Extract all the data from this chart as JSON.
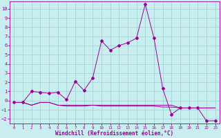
{
  "xlabel": "Windchill (Refroidissement éolien,°C)",
  "bg_color": "#c8eef0",
  "grid_color": "#9ecfcf",
  "line_color": "#990099",
  "xlim": [
    -0.5,
    23.5
  ],
  "ylim": [
    -2.5,
    10.8
  ],
  "yticks": [
    -2,
    -1,
    0,
    1,
    2,
    3,
    4,
    5,
    6,
    7,
    8,
    9,
    10
  ],
  "xticks": [
    0,
    1,
    2,
    3,
    4,
    5,
    6,
    7,
    8,
    9,
    10,
    11,
    12,
    13,
    14,
    15,
    16,
    17,
    18,
    19,
    20,
    21,
    22,
    23
  ],
  "series1": {
    "x": [
      0,
      1,
      2,
      3,
      4,
      5,
      6,
      7,
      8,
      9,
      10,
      11,
      12,
      13,
      14,
      15,
      16,
      17,
      18,
      19,
      20,
      21,
      22,
      23
    ],
    "y": [
      -0.2,
      -0.2,
      1.0,
      0.9,
      0.8,
      0.9,
      0.1,
      2.1,
      1.1,
      2.5,
      6.5,
      5.5,
      6.0,
      6.3,
      6.8,
      10.5,
      6.8,
      1.3,
      -1.5,
      -0.8,
      -0.8,
      -0.8,
      -2.2,
      -2.2
    ]
  },
  "series2": {
    "x": [
      0,
      1,
      2,
      3,
      4,
      5,
      6,
      7,
      8,
      9,
      10,
      11,
      12,
      13,
      14,
      15,
      16,
      17,
      18,
      19,
      20,
      21,
      22,
      23
    ],
    "y": [
      -0.2,
      -0.2,
      -0.5,
      -0.2,
      -0.2,
      -0.5,
      -0.5,
      -0.5,
      -0.5,
      -0.5,
      -0.5,
      -0.5,
      -0.5,
      -0.5,
      -0.5,
      -0.5,
      -0.5,
      -0.5,
      -0.5,
      -0.8,
      -0.8,
      -0.8,
      -0.8,
      -0.8
    ]
  },
  "series3": {
    "x": [
      0,
      1,
      2,
      3,
      4,
      5,
      6,
      7,
      8,
      9,
      10,
      11,
      12,
      13,
      14,
      15,
      16,
      17,
      18,
      19,
      20,
      21,
      22,
      23
    ],
    "y": [
      -0.2,
      -0.2,
      -0.5,
      -0.2,
      -0.2,
      -0.5,
      -0.6,
      -0.6,
      -0.6,
      -0.5,
      -0.6,
      -0.6,
      -0.6,
      -0.6,
      -0.6,
      -0.6,
      -0.6,
      -0.7,
      -0.7,
      -0.8,
      -0.8,
      -0.8,
      -0.8,
      -0.8
    ]
  },
  "xlabel_fontsize": 5.5,
  "tick_fontsize_x": 4.2,
  "tick_fontsize_y": 5.0,
  "linewidth": 0.7,
  "markersize": 2.0
}
